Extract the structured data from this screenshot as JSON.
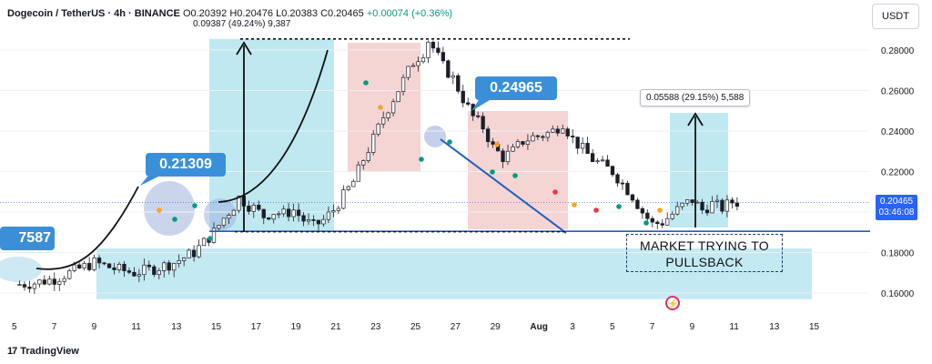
{
  "header": {
    "symbol": "Dogecoin / TetherUS · 4h · BINANCE",
    "open": "O0.20392",
    "high": "H0.20476",
    "low": "L0.20383",
    "close": "C0.20465",
    "change": "+0.00074 (+0.36%)"
  },
  "unit_label": "USDT",
  "current_price": {
    "price": "0.20465",
    "countdown": "03:46:08",
    "value": 0.20465
  },
  "measure_top": "0.09387 (49.24%) 9,387",
  "measure_right": "0.05588 (29.15%) 5,588",
  "callouts": {
    "low_label": "0.21309",
    "high_label": "0.24965",
    "left_label": "7587"
  },
  "note": {
    "line1": "MARKET TRYING TO",
    "line2": "PULLSBACK"
  },
  "branding": {
    "mark": "17",
    "name": "TradingView"
  },
  "colors": {
    "up": "#089981",
    "down": "#f23645",
    "zone_blue": "#b4e4ef",
    "zone_red": "#f2c9c9",
    "callout": "#3b8fd9",
    "trend": "#1f5fbf"
  },
  "chart_data": {
    "type": "candlestick",
    "x_tick_labels": [
      "5",
      "7",
      "9",
      "11",
      "13",
      "15",
      "17",
      "19",
      "21",
      "23",
      "25",
      "27",
      "29",
      "Aug",
      "3",
      "5",
      "7",
      "9",
      "11",
      "13",
      "15"
    ],
    "y_tick_labels": [
      "0.28000",
      "0.26000",
      "0.24000",
      "0.22000",
      "0.18000",
      "0.16000"
    ],
    "ylim": [
      0.15,
      0.292
    ],
    "close_path": [
      [
        0,
        0.164
      ],
      [
        1,
        0.165
      ],
      [
        2,
        0.167
      ],
      [
        3,
        0.171
      ],
      [
        4,
        0.175
      ],
      [
        5,
        0.172
      ],
      [
        6,
        0.17
      ],
      [
        7,
        0.172
      ],
      [
        8,
        0.175
      ],
      [
        9,
        0.18
      ],
      [
        10,
        0.19
      ],
      [
        10.5,
        0.197
      ],
      [
        11,
        0.203
      ],
      [
        11.3,
        0.208
      ],
      [
        11.6,
        0.204
      ],
      [
        12,
        0.202
      ],
      [
        12.5,
        0.198
      ],
      [
        13,
        0.2
      ],
      [
        13.5,
        0.199
      ],
      [
        14,
        0.201
      ],
      [
        14.5,
        0.196
      ],
      [
        15,
        0.193
      ],
      [
        15.5,
        0.196
      ],
      [
        16,
        0.201
      ],
      [
        16.5,
        0.208
      ],
      [
        17,
        0.215
      ],
      [
        17.5,
        0.226
      ],
      [
        18,
        0.236
      ],
      [
        18.5,
        0.247
      ],
      [
        19,
        0.256
      ],
      [
        19.5,
        0.265
      ],
      [
        20,
        0.274
      ],
      [
        20.5,
        0.279
      ],
      [
        20.8,
        0.286
      ],
      [
        21,
        0.281
      ],
      [
        21.5,
        0.272
      ],
      [
        22,
        0.266
      ],
      [
        22.5,
        0.256
      ],
      [
        23,
        0.247
      ],
      [
        23.5,
        0.242
      ],
      [
        24,
        0.232
      ],
      [
        24.5,
        0.227
      ],
      [
        25,
        0.23
      ],
      [
        25.5,
        0.235
      ],
      [
        26,
        0.237
      ],
      [
        26.5,
        0.238
      ],
      [
        27,
        0.24
      ],
      [
        27.5,
        0.244
      ],
      [
        28,
        0.236
      ],
      [
        28.5,
        0.231
      ],
      [
        29,
        0.226
      ],
      [
        29.5,
        0.223
      ],
      [
        30,
        0.22
      ],
      [
        30.5,
        0.214
      ],
      [
        31,
        0.208
      ],
      [
        31.5,
        0.2
      ],
      [
        32,
        0.194
      ],
      [
        32.5,
        0.195
      ],
      [
        33,
        0.199
      ],
      [
        33.5,
        0.203
      ],
      [
        34,
        0.206
      ],
      [
        34.5,
        0.201
      ],
      [
        35,
        0.204
      ],
      [
        35.5,
        0.202
      ],
      [
        36,
        0.205
      ],
      [
        36.4,
        0.2047
      ]
    ],
    "annotations": {
      "support_level": 0.1905,
      "top_level": 0.2855,
      "buy_zone": [
        0.157,
        0.182
      ],
      "projected_target": 0.2475
    }
  }
}
